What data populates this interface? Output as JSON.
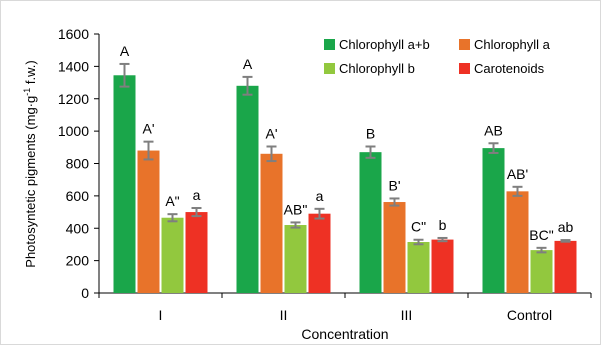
{
  "chart_data": {
    "type": "bar",
    "title": "",
    "xlabel": "Concentration",
    "ylabel_main": "Photosyntetic pigments (mg·g",
    "ylabel_sup": "-1",
    "ylabel_tail": " f.w.)",
    "ylim": [
      0,
      1600
    ],
    "yticks": [
      0,
      200,
      400,
      600,
      800,
      1000,
      1200,
      1400,
      1600
    ],
    "grid": false,
    "legend_position": "top-right",
    "categories": [
      "I",
      "II",
      "III",
      "Control"
    ],
    "series": [
      {
        "name": "Chlorophyll a+b",
        "color": "#1aa64a",
        "values": [
          1345,
          1280,
          870,
          895
        ],
        "errors": [
          70,
          55,
          35,
          30
        ],
        "labels": [
          "A",
          "A",
          "B",
          "AB"
        ]
      },
      {
        "name": "Chlorophyll a",
        "color": "#e8732a",
        "values": [
          880,
          860,
          562,
          628
        ],
        "errors": [
          55,
          45,
          22,
          28
        ],
        "labels": [
          "A'",
          "A'",
          "B'",
          "AB'"
        ]
      },
      {
        "name": "Chlorophyll b",
        "color": "#92c83e",
        "values": [
          465,
          420,
          315,
          265
        ],
        "errors": [
          22,
          16,
          14,
          14
        ],
        "labels": [
          "A\"",
          "AB\"",
          "C\"",
          "BC\""
        ]
      },
      {
        "name": "Carotenoids",
        "color": "#ee3124",
        "values": [
          500,
          490,
          330,
          322
        ],
        "errors": [
          25,
          30,
          10,
          5
        ],
        "labels": [
          "a",
          "a",
          "b",
          "ab"
        ]
      }
    ],
    "error_bar_color": "#7f7f7f"
  }
}
